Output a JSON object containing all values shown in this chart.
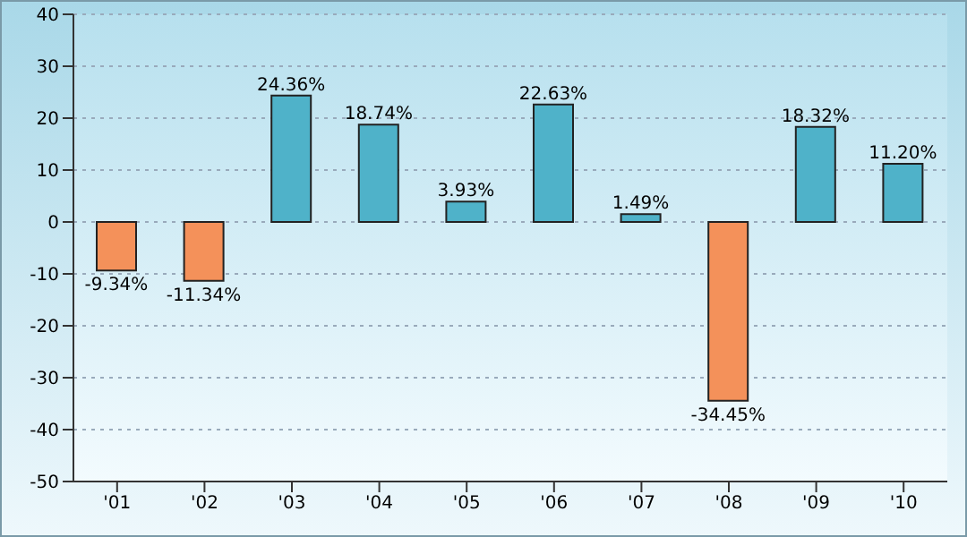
{
  "chart_data": {
    "type": "bar",
    "categories": [
      "'01",
      "'02",
      "'03",
      "'04",
      "'05",
      "'06",
      "'07",
      "'08",
      "'09",
      "'10"
    ],
    "values": [
      -9.34,
      -11.34,
      24.36,
      18.74,
      3.93,
      22.63,
      1.49,
      -34.45,
      18.32,
      11.2
    ],
    "colors": [
      "#f4915a",
      "#f4915a",
      "#4fb2c9",
      "#4fb2c9",
      "#4fb2c9",
      "#4fb2c9",
      "#4fb2c9",
      "#f4915a",
      "#4fb2c9",
      "#4fb2c9"
    ],
    "value_labels": [
      "-9.34%",
      "-11.34%",
      "24.36%",
      "18.74%",
      "3.93%",
      "22.63%",
      "1.49%",
      "-34.45%",
      "18.32%",
      "11.20%"
    ],
    "ylim": [
      -50,
      40
    ],
    "yticks": [
      -50,
      -40,
      -30,
      -20,
      -10,
      0,
      10,
      20,
      30,
      40
    ],
    "grid": "y",
    "legend": false
  }
}
